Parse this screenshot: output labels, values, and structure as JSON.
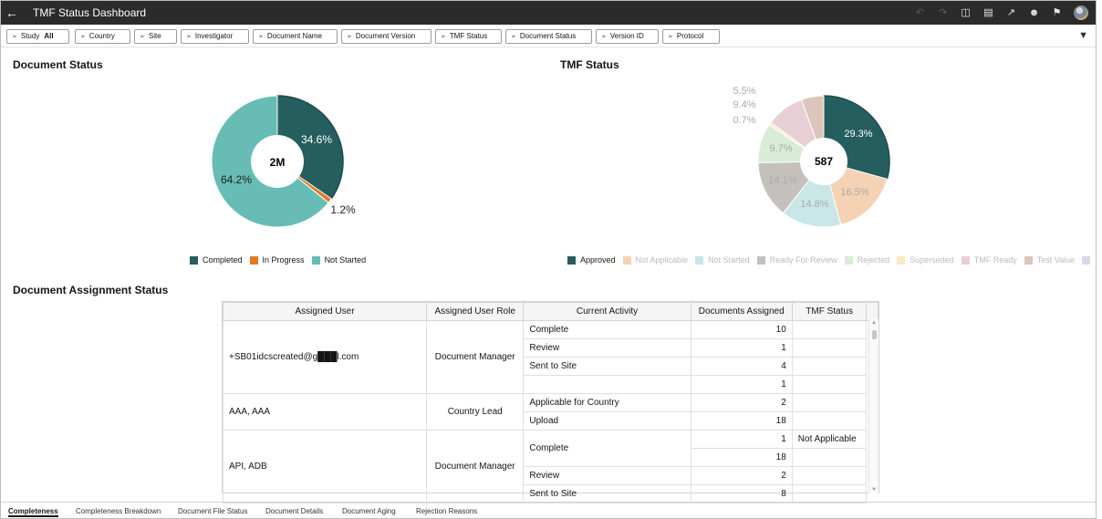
{
  "app": {
    "title": "TMF Status Dashboard"
  },
  "filters": [
    {
      "label": "Study",
      "value": "All"
    },
    {
      "label": "Country",
      "value": ""
    },
    {
      "label": "Site",
      "value": ""
    },
    {
      "label": "Investigator",
      "value": ""
    },
    {
      "label": "Document Name",
      "value": ""
    },
    {
      "label": "Document Version",
      "value": ""
    },
    {
      "label": "TMF Status",
      "value": ""
    },
    {
      "label": "Document Status",
      "value": ""
    },
    {
      "label": "Version ID",
      "value": ""
    },
    {
      "label": "Protocol",
      "value": ""
    }
  ],
  "document_status": {
    "title": "Document Status",
    "center": "2M",
    "labels": [
      "34.6%",
      "1.2%",
      "64.2%"
    ],
    "legend": [
      "Completed",
      "In Progress",
      "Not Started"
    ],
    "colors": [
      "#255e5e",
      "#e07b24",
      "#67bdb5"
    ]
  },
  "tmf_status": {
    "title": "TMF Status",
    "center": "587",
    "labels": [
      "29.3%",
      "16.5%",
      "14.8%",
      "14.1%",
      "9.7%",
      "0.7%",
      "9.4%",
      "5.5%"
    ],
    "legend": [
      "Approved",
      "Not Applicable",
      "Not Started",
      "Ready For Review",
      "Rejected",
      "Superseded",
      "TMF Ready",
      "Test Value"
    ],
    "colors": [
      "#255e5e",
      "#f5d2b3",
      "#c9e7e6",
      "#c4c1bd",
      "#d9ecd6",
      "#fdeac4",
      "#e8ced5",
      "#dcc5bb",
      "#d9d6ec"
    ]
  },
  "chart_data": [
    {
      "type": "pie",
      "title": "Document Status",
      "categories": [
        "Completed",
        "In Progress",
        "Not Started"
      ],
      "values": [
        34.6,
        1.2,
        64.2
      ],
      "total_label": "2M"
    },
    {
      "type": "pie",
      "title": "TMF Status",
      "categories": [
        "Approved",
        "Not Applicable",
        "Not Started",
        "Ready For Review",
        "Rejected",
        "Superseded",
        "TMF Ready",
        "Test Value"
      ],
      "values": [
        29.3,
        16.5,
        14.8,
        14.1,
        9.7,
        0.7,
        9.4,
        5.5
      ],
      "total_label": "587"
    }
  ],
  "assignment": {
    "title": "Document Assignment Status",
    "columns": [
      "Assigned User",
      "Assigned User Role",
      "Current Activity",
      "Documents Assigned",
      "TMF Status"
    ],
    "groups": [
      {
        "user": "+SB01idcscreated@g███l.com",
        "role": "Document Manager",
        "rows": [
          {
            "activity": "Complete",
            "count": "10",
            "tmf": ""
          },
          {
            "activity": "Review",
            "count": "1",
            "tmf": ""
          },
          {
            "activity": "Sent to Site",
            "count": "4",
            "tmf": ""
          },
          {
            "activity": "",
            "count": "1",
            "tmf": ""
          }
        ]
      },
      {
        "user": "AAA, AAA",
        "role": "Country Lead",
        "rows": [
          {
            "activity": "Applicable for Country",
            "count": "2",
            "tmf": ""
          },
          {
            "activity": "Upload",
            "count": "18",
            "tmf": ""
          }
        ]
      },
      {
        "user": "API, ADB",
        "role": "Document Manager",
        "rows": [
          {
            "activity": "Complete",
            "count": "1",
            "tmf": "Not Applicable"
          },
          {
            "activity": "",
            "count": "18",
            "tmf": ""
          },
          {
            "activity": "Review",
            "count": "2",
            "tmf": ""
          },
          {
            "activity": "Sent to Site",
            "count": "8",
            "tmf": ""
          }
        ]
      }
    ]
  },
  "bottom_tabs": [
    "Completeness",
    "Completeness Breakdown",
    "Document File Status",
    "Document Details",
    "Document Aging",
    "Rejection Reasons"
  ],
  "icons": [
    "back-arrow-icon",
    "undo-icon",
    "redo-icon",
    "data-icon",
    "comment-icon",
    "export-icon",
    "user-settings-icon",
    "bookmark-icon",
    "filter-icon",
    "pin-icon"
  ]
}
